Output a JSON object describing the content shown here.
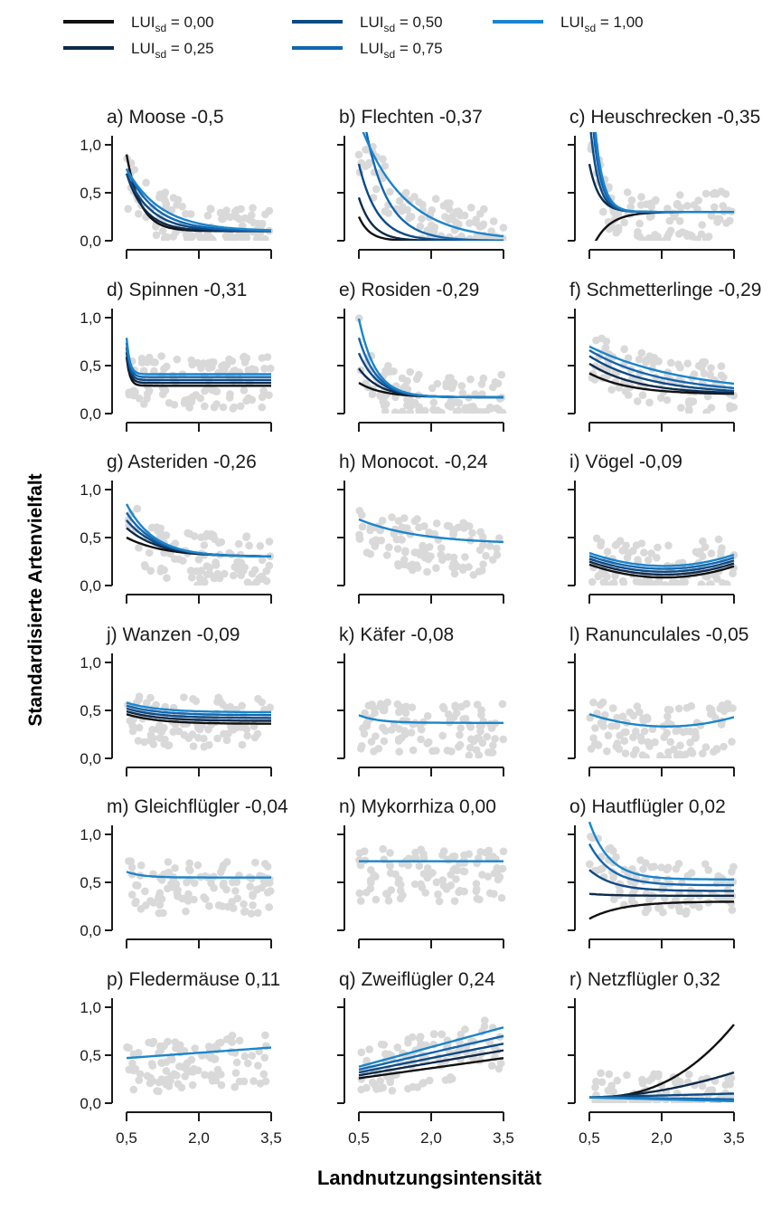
{
  "legend": {
    "items": [
      {
        "label": "LUI",
        "sub": "sd",
        "value": " = 0,00",
        "color": "#111111"
      },
      {
        "label": "LUI",
        "sub": "sd",
        "value": " = 0,25",
        "color": "#0d2a4a"
      },
      {
        "label": "LUI",
        "sub": "sd",
        "value": " = 0,50",
        "color": "#0d4a84"
      },
      {
        "label": "LUI",
        "sub": "sd",
        "value": " = 0,75",
        "color": "#1266b0"
      },
      {
        "label": "LUI",
        "sub": "sd",
        "value": " = 1,00",
        "color": "#1a85cc"
      }
    ]
  },
  "y_axis_label": "Standardisierte Artenvielfalt",
  "x_axis_label": "Landnutzungsintensität",
  "colors": {
    "points": "#d9d9d9",
    "axis": "#1a1a1a",
    "series": [
      "#111111",
      "#0d2a4a",
      "#0d4a84",
      "#1266b0",
      "#1a85cc"
    ],
    "single_series": "#1a85cc"
  },
  "chart_data": {
    "type": "line",
    "x_ticks": [
      0.5,
      2.0,
      3.5
    ],
    "x_tick_labels": [
      "0,5",
      "2,0",
      "3,5"
    ],
    "y_ticks": [
      0.0,
      0.5,
      1.0
    ],
    "y_tick_labels": [
      "0,0",
      "0,5",
      "1,0"
    ],
    "xlim": [
      0.5,
      3.5
    ],
    "ylim": [
      0.0,
      1.0
    ],
    "panels": [
      {
        "title": "a) Moose -0,5",
        "y_labels": true,
        "x_labels": false,
        "curves": [
          {
            "a": 0.1,
            "b": 0.8,
            "k": 3.5
          },
          {
            "a": 0.1,
            "b": 0.6,
            "k": 2.6
          },
          {
            "a": 0.1,
            "b": 0.6,
            "k": 2.0
          },
          {
            "a": 0.1,
            "b": 0.65,
            "k": 1.7
          },
          {
            "a": 0.1,
            "b": 0.65,
            "k": 1.4
          }
        ]
      },
      {
        "title": "b) Flechten -0,37",
        "y_labels": false,
        "x_labels": false,
        "curves": [
          {
            "a": 0.0,
            "b": 0.25,
            "k": 4.5
          },
          {
            "a": 0.0,
            "b": 0.45,
            "k": 3.5
          },
          {
            "a": 0.0,
            "b": 0.8,
            "k": 2.6
          },
          {
            "a": 0.0,
            "b": 1.6,
            "k": 2.2
          },
          {
            "a": 0.0,
            "b": 1.25,
            "k": 1.1
          }
        ]
      },
      {
        "title": "c) Heuschrecken -0,35",
        "y_labels": false,
        "x_labels": false,
        "curves": [
          {
            "a": 0.3,
            "b": -0.45,
            "k": 3.0
          },
          {
            "a": 0.3,
            "b": 0.5,
            "k": 5.0
          },
          {
            "a": 0.3,
            "b": 1.0,
            "k": 6.0
          },
          {
            "a": 0.3,
            "b": 1.4,
            "k": 6.0
          },
          {
            "a": 0.3,
            "b": 1.8,
            "k": 6.0
          }
        ]
      },
      {
        "title": "d) Spinnen -0,31",
        "y_labels": true,
        "x_labels": false,
        "curves": [
          {
            "a": 0.29,
            "b": 0.3,
            "k": 15
          },
          {
            "a": 0.32,
            "b": 0.32,
            "k": 15
          },
          {
            "a": 0.35,
            "b": 0.34,
            "k": 15
          },
          {
            "a": 0.38,
            "b": 0.36,
            "k": 15
          },
          {
            "a": 0.41,
            "b": 0.38,
            "k": 15
          }
        ]
      },
      {
        "title": "e) Rosiden -0,29",
        "y_labels": false,
        "x_labels": false,
        "curves": [
          {
            "a": 0.17,
            "b": 0.15,
            "k": 2.0
          },
          {
            "a": 0.17,
            "b": 0.3,
            "k": 2.3
          },
          {
            "a": 0.17,
            "b": 0.46,
            "k": 2.5
          },
          {
            "a": 0.17,
            "b": 0.62,
            "k": 2.7
          },
          {
            "a": 0.17,
            "b": 0.82,
            "k": 2.9
          }
        ]
      },
      {
        "title": "f) Schmetterlinge -0,29",
        "y_labels": false,
        "x_labels": false,
        "curves": [
          {
            "a": 0.2,
            "b": 0.22,
            "k": 1.2
          },
          {
            "a": 0.2,
            "b": 0.32,
            "k": 1.0
          },
          {
            "a": 0.2,
            "b": 0.4,
            "k": 0.8
          },
          {
            "a": 0.2,
            "b": 0.46,
            "k": 0.65
          },
          {
            "a": 0.2,
            "b": 0.5,
            "k": 0.5
          }
        ]
      },
      {
        "title": "g) Asteriden -0,26",
        "y_labels": true,
        "x_labels": false,
        "curves": [
          {
            "a": 0.3,
            "b": 0.2,
            "k": 1.3
          },
          {
            "a": 0.3,
            "b": 0.3,
            "k": 1.45
          },
          {
            "a": 0.3,
            "b": 0.38,
            "k": 1.55
          },
          {
            "a": 0.3,
            "b": 0.46,
            "k": 1.65
          },
          {
            "a": 0.3,
            "b": 0.55,
            "k": 1.75
          }
        ]
      },
      {
        "title": "h) Monocot. -0,24",
        "y_labels": false,
        "x_labels": false,
        "curves": [
          {
            "a": 0.43,
            "b": 0.26,
            "k": 0.8
          }
        ]
      },
      {
        "title": "i) Vögel -0,09",
        "y_labels": false,
        "x_labels": false,
        "quad": true,
        "curves": [
          {
            "c0": 0.32,
            "c1": -0.23,
            "c2": 0.056
          },
          {
            "c0": 0.35,
            "c1": -0.23,
            "c2": 0.056
          },
          {
            "c0": 0.38,
            "c1": -0.23,
            "c2": 0.056
          },
          {
            "c0": 0.41,
            "c1": -0.23,
            "c2": 0.056
          },
          {
            "c0": 0.44,
            "c1": -0.23,
            "c2": 0.056
          }
        ]
      },
      {
        "title": "j) Wanzen -0,09",
        "y_labels": true,
        "x_labels": false,
        "curves": [
          {
            "a": 0.36,
            "b": 0.1,
            "k": 1.5
          },
          {
            "a": 0.39,
            "b": 0.1,
            "k": 1.5
          },
          {
            "a": 0.42,
            "b": 0.1,
            "k": 1.5
          },
          {
            "a": 0.45,
            "b": 0.1,
            "k": 1.5
          },
          {
            "a": 0.48,
            "b": 0.1,
            "k": 1.5
          }
        ]
      },
      {
        "title": "k) Käfer -0,08",
        "y_labels": false,
        "x_labels": false,
        "curves": [
          {
            "a": 0.37,
            "b": 0.08,
            "k": 2.5
          }
        ]
      },
      {
        "title": "l) Ranunculales -0,05",
        "y_labels": false,
        "x_labels": false,
        "quad": true,
        "curves": [
          {
            "c0": 0.553,
            "c1": -0.21,
            "c2": 0.05
          }
        ]
      },
      {
        "title": "m) Gleichflügler -0,04",
        "y_labels": true,
        "x_labels": false,
        "curves": [
          {
            "a": 0.55,
            "b": 0.06,
            "k": 3.0
          }
        ]
      },
      {
        "title": "n) Mykorrhiza 0,00",
        "y_labels": false,
        "x_labels": false,
        "curves": [
          {
            "a": 0.72,
            "b": 0.0,
            "k": 1.0
          }
        ]
      },
      {
        "title": "o) Hautflügler 0,02",
        "y_labels": false,
        "x_labels": false,
        "curves": [
          {
            "a": 0.3,
            "b": -0.18,
            "k": 1.5
          },
          {
            "a": 0.36,
            "b": 0.02,
            "k": 2.0
          },
          {
            "a": 0.41,
            "b": 0.22,
            "k": 2.0
          },
          {
            "a": 0.47,
            "b": 0.43,
            "k": 2.2
          },
          {
            "a": 0.53,
            "b": 0.6,
            "k": 2.4
          }
        ]
      },
      {
        "title": "p) Fledermäuse 0,11",
        "y_labels": true,
        "x_labels": true,
        "linear": true,
        "curves": [
          {
            "y0": 0.47,
            "y1": 0.58
          }
        ]
      },
      {
        "title": "q) Zweiflügler 0,24",
        "y_labels": false,
        "x_labels": true,
        "linear": true,
        "curves": [
          {
            "y0": 0.26,
            "y1": 0.47
          },
          {
            "y0": 0.29,
            "y1": 0.55
          },
          {
            "y0": 0.32,
            "y1": 0.62
          },
          {
            "y0": 0.35,
            "y1": 0.7
          },
          {
            "y0": 0.38,
            "y1": 0.79
          }
        ]
      },
      {
        "title": "r) Netzflügler  0,32",
        "y_labels": false,
        "x_labels": true,
        "pow": true,
        "curves": [
          {
            "y0": 0.06,
            "y1": 0.82,
            "p": 2.4
          },
          {
            "y0": 0.06,
            "y1": 0.32,
            "p": 1.8
          },
          {
            "y0": 0.06,
            "y1": 0.1,
            "p": 1.0
          },
          {
            "y0": 0.06,
            "y1": 0.04,
            "p": 1.0
          },
          {
            "y0": 0.06,
            "y1": 0.02,
            "p": 1.0
          }
        ]
      }
    ]
  }
}
